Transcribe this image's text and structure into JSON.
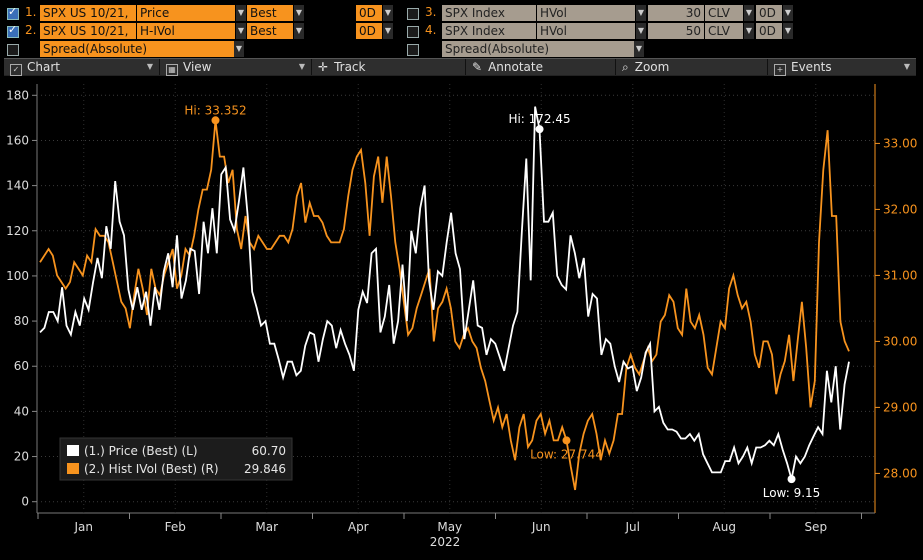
{
  "series_rows": [
    {
      "num": "1.",
      "security": "SPX US 10/21,",
      "field": "Price",
      "source": "Best",
      "lag": "0D",
      "checked": true
    },
    {
      "num": "2.",
      "security": "SPX US 10/21,",
      "field": "H-IVol",
      "source": "Best",
      "lag": "0D",
      "checked": true
    },
    {
      "num": "",
      "security": "",
      "field": "Spread(Absolute)",
      "source": "",
      "lag": "",
      "checked": false
    }
  ],
  "series_rows_right": [
    {
      "num": "3.",
      "security": "SPX Index",
      "field": "HVol",
      "period": "30",
      "source": "CLV",
      "lag": "0D",
      "checked": false
    },
    {
      "num": "4.",
      "security": "SPX Index",
      "field": "HVol",
      "period": "50",
      "source": "CLV",
      "lag": "0D",
      "checked": false
    },
    {
      "num": "",
      "security": "",
      "field": "Spread(Absolute)",
      "period": "",
      "source": "",
      "lag": "",
      "checked": false
    }
  ],
  "toolbar": {
    "chart": "Chart",
    "view": "View",
    "track": "Track",
    "annotate": "Annotate",
    "zoom": "Zoom",
    "events": "Events"
  },
  "colors": {
    "price": "#ffffff",
    "ivol": "#f7931e",
    "background": "#000000",
    "axis": "#888888"
  },
  "chart_data": {
    "type": "line",
    "x_axis_labels": [
      "Jan",
      "Feb",
      "Mar",
      "Apr",
      "May",
      "Jun",
      "Jul",
      "Aug",
      "Sep"
    ],
    "x_year_label": "2022",
    "y_left": {
      "ticks": [
        0,
        20,
        40,
        60,
        80,
        100,
        120,
        140,
        160,
        180
      ],
      "range": [
        -5,
        185
      ]
    },
    "y_right": {
      "ticks": [
        "28.00",
        "29.00",
        "30.00",
        "31.00",
        "32.00",
        "33.00"
      ],
      "range": [
        27.4,
        33.9
      ]
    },
    "legend": [
      {
        "label": "(1.) Price (Best) (L)",
        "value": "60.70"
      },
      {
        "label": "(2.) Hist IVol (Best) (R)",
        "value": "29.846"
      }
    ],
    "annotations": {
      "price_hi": "Hi: 172.45",
      "price_low": "Low: 9.15",
      "ivol_hi": "Hi: 33.352",
      "ivol_low": "Low: 27.744"
    },
    "series": [
      {
        "name": "(1.) Price (Best) (L)",
        "axis": "left",
        "values": [
          75,
          77,
          84,
          84,
          80,
          95,
          78,
          74,
          84,
          78,
          90,
          85,
          97,
          108,
          99,
          122,
          112,
          142,
          124,
          118,
          94,
          85,
          95,
          85,
          93,
          78,
          95,
          85,
          102,
          110,
          95,
          118,
          90,
          98,
          112,
          111,
          92,
          124,
          110,
          130,
          110,
          145,
          148,
          125,
          120,
          133,
          148,
          126,
          93,
          86,
          78,
          80,
          70,
          70,
          63,
          55,
          62,
          62,
          56,
          58,
          69,
          75,
          74,
          62,
          72,
          80,
          78,
          68,
          76,
          70,
          65,
          58,
          85,
          93,
          88,
          110,
          112,
          75,
          82,
          96,
          70,
          80,
          105,
          80,
          120,
          110,
          130,
          140,
          98,
          85,
          102,
          100,
          115,
          128,
          110,
          103,
          72,
          85,
          98,
          78,
          77,
          65,
          72,
          70,
          64,
          58,
          68,
          78,
          84,
          120,
          152,
          98,
          175,
          165,
          124,
          124,
          128,
          100,
          96,
          94,
          118,
          110,
          99,
          108,
          82,
          92,
          90,
          65,
          72,
          70,
          60,
          53,
          62,
          59,
          60,
          49,
          55,
          66,
          70,
          40,
          42,
          35,
          32,
          32,
          31,
          28,
          28,
          30,
          27,
          30,
          21,
          17,
          13,
          13,
          13,
          18,
          18,
          24,
          17,
          20,
          24,
          17,
          24,
          24,
          25,
          27,
          25,
          30,
          23,
          17,
          10,
          20,
          17,
          20,
          25,
          29,
          33,
          30,
          58,
          44,
          60,
          32,
          52,
          62
        ],
        "labeled_points": {
          "hi_index": 113,
          "low_index": 170
        }
      },
      {
        "name": "(2.) Hist IVol (Best) (R)",
        "axis": "right",
        "values": [
          31.2,
          31.3,
          31.4,
          31.3,
          31.0,
          30.9,
          30.8,
          30.9,
          31.2,
          31.1,
          31.0,
          31.3,
          31.2,
          31.7,
          31.6,
          31.6,
          31.5,
          31.2,
          30.9,
          30.6,
          30.5,
          30.2,
          30.7,
          31.1,
          30.8,
          30.4,
          31.1,
          30.8,
          30.7,
          31.0,
          31.2,
          31.4,
          30.8,
          31.0,
          31.4,
          31.3,
          31.6,
          32.0,
          32.3,
          32.3,
          32.6,
          33.35,
          32.8,
          32.8,
          32.4,
          32.6,
          31.7,
          31.4,
          31.9,
          31.5,
          31.4,
          31.6,
          31.5,
          31.4,
          31.4,
          31.5,
          31.6,
          31.6,
          31.5,
          31.7,
          32.2,
          32.4,
          31.8,
          32.1,
          31.9,
          31.9,
          31.8,
          31.6,
          31.5,
          31.5,
          31.5,
          31.7,
          32.2,
          32.6,
          32.8,
          32.9,
          32.4,
          31.6,
          32.5,
          32.8,
          32.1,
          32.8,
          32.2,
          31.5,
          31.1,
          30.6,
          30.1,
          30.2,
          30.5,
          30.7,
          30.9,
          31.1,
          30.0,
          30.5,
          30.6,
          30.8,
          30.5,
          30.0,
          29.9,
          30.1,
          30.2,
          30.0,
          29.9,
          29.6,
          29.4,
          29.1,
          28.8,
          29.0,
          28.7,
          28.9,
          28.5,
          28.2,
          28.7,
          28.9,
          28.4,
          28.5,
          28.8,
          28.9,
          28.6,
          28.8,
          28.5,
          28.5,
          28.7,
          28.5,
          28.1,
          27.75,
          28.3,
          28.6,
          28.8,
          28.9,
          28.6,
          28.2,
          28.5,
          28.3,
          28.5,
          28.9,
          28.9,
          29.6,
          29.8,
          29.6,
          29.5,
          29.7,
          29.9,
          29.7,
          29.8,
          30.3,
          30.4,
          30.7,
          30.6,
          30.2,
          30.1,
          30.8,
          30.3,
          30.2,
          30.4,
          30.1,
          29.6,
          29.5,
          29.9,
          30.3,
          30.2,
          30.8,
          31.0,
          30.7,
          30.5,
          30.6,
          30.3,
          29.8,
          29.6,
          30.0,
          30.0,
          29.8,
          29.2,
          29.5,
          29.7,
          30.1,
          29.4,
          30.0,
          30.6,
          29.9,
          29.0,
          29.4,
          31.5,
          32.6,
          33.2,
          31.9,
          31.9,
          30.3,
          30.0,
          29.85
        ],
        "labeled_points": {
          "hi_index": 41,
          "low_index": 123
        }
      }
    ]
  }
}
